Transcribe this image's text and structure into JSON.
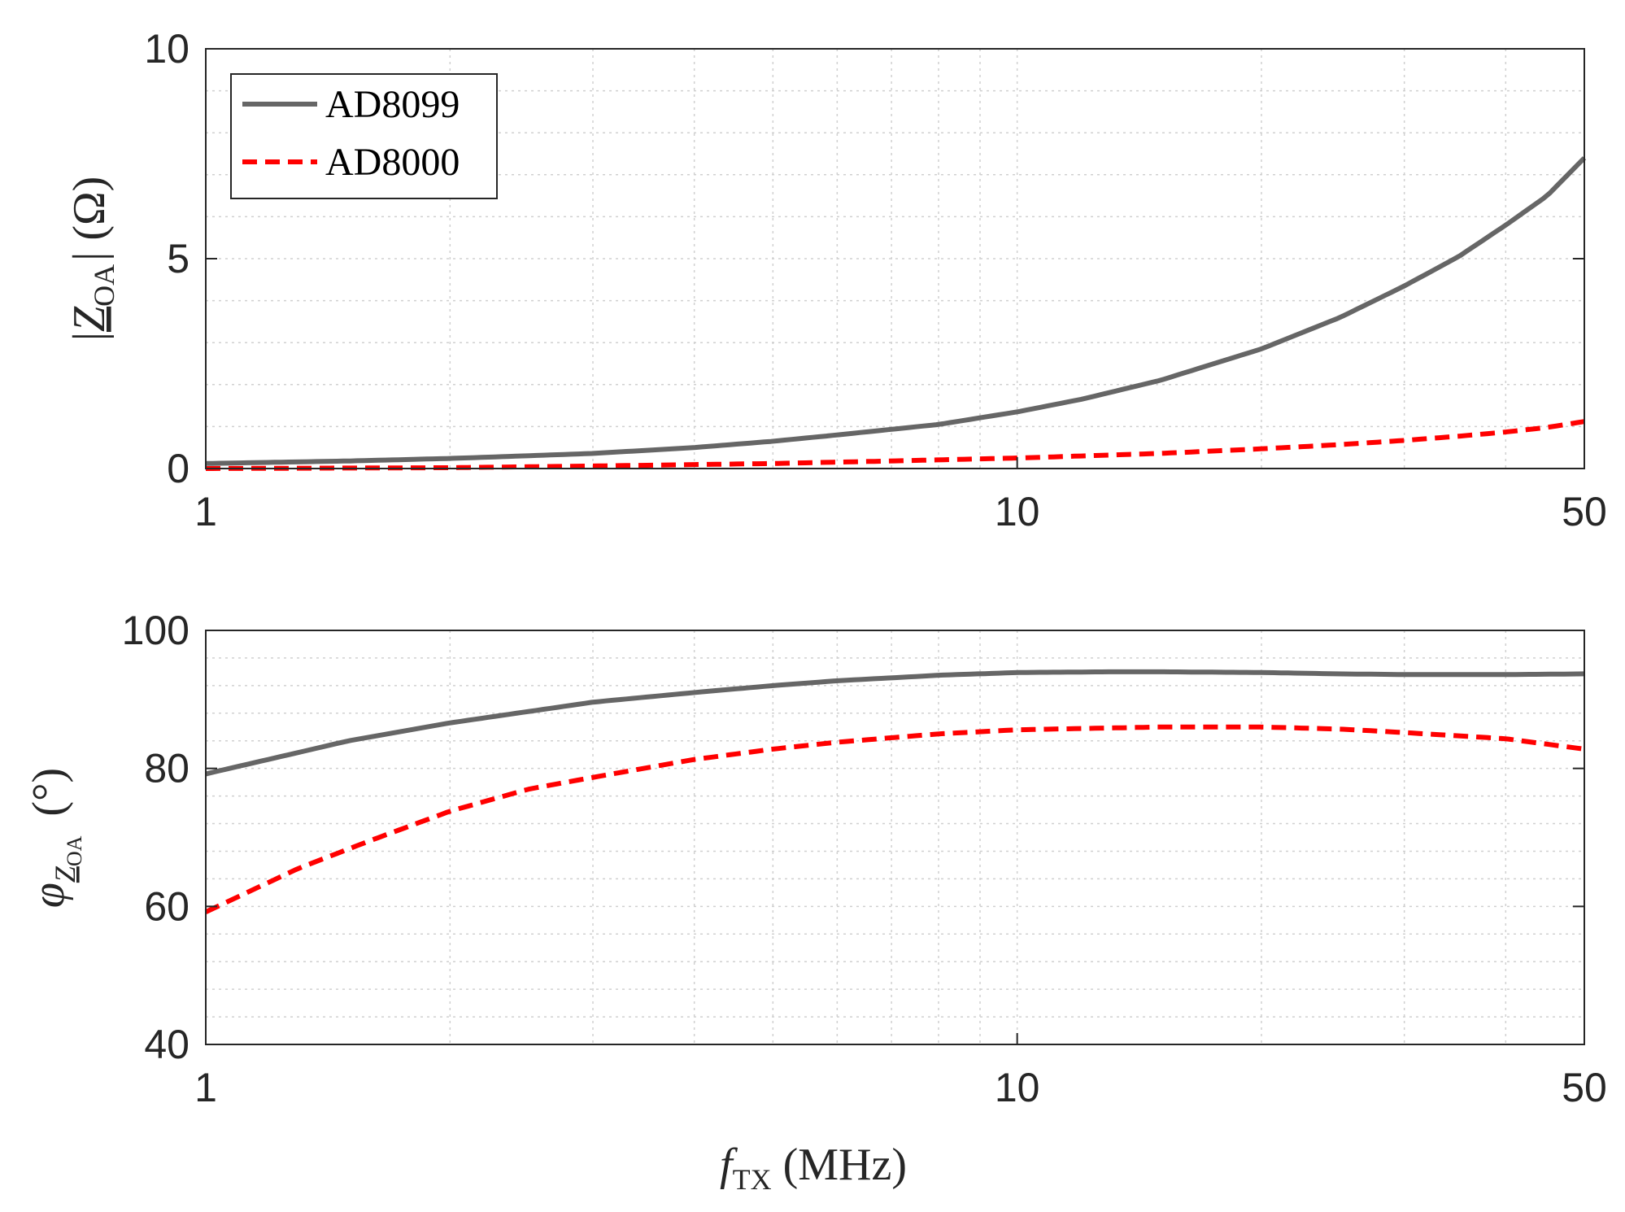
{
  "colors": {
    "ad8099": "#666666",
    "ad8000": "#ff0000",
    "grid": "#d0d0d0",
    "axis": "#262626"
  },
  "chart_data": [
    {
      "type": "line",
      "xscale": "log",
      "xlim": [
        1,
        50
      ],
      "ylim": [
        0,
        10
      ],
      "xticks": [
        1,
        10,
        50
      ],
      "xtick_labels": [
        "1",
        "10",
        "50"
      ],
      "yticks": [
        0,
        5,
        10
      ],
      "ytick_labels": [
        "0",
        "5",
        "10"
      ],
      "ylabel": {
        "left": "|",
        "main": "Z",
        "sub": "OA",
        "right": "| (Ω)"
      },
      "grid": true,
      "legend": {
        "position": "top-left",
        "entries": [
          "AD8099",
          "AD8000"
        ]
      },
      "series": [
        {
          "name": "AD8099",
          "style": "solid",
          "x": [
            1,
            1.5,
            2,
            3,
            4,
            5,
            6,
            8,
            10,
            12,
            15,
            20,
            25,
            30,
            35,
            40,
            45,
            50
          ],
          "y": [
            0.12,
            0.18,
            0.24,
            0.36,
            0.5,
            0.65,
            0.8,
            1.05,
            1.35,
            1.65,
            2.1,
            2.85,
            3.6,
            4.35,
            5.05,
            5.8,
            6.5,
            7.4
          ]
        },
        {
          "name": "AD8000",
          "style": "dashed",
          "x": [
            1,
            2,
            3,
            5,
            7,
            10,
            15,
            20,
            25,
            30,
            35,
            40,
            45,
            50
          ],
          "y": [
            0.0,
            0.02,
            0.06,
            0.12,
            0.18,
            0.25,
            0.36,
            0.47,
            0.57,
            0.67,
            0.77,
            0.87,
            0.98,
            1.12
          ]
        }
      ]
    },
    {
      "type": "line",
      "xscale": "log",
      "xlim": [
        1,
        50
      ],
      "ylim": [
        40,
        100
      ],
      "xticks": [
        1,
        10,
        50
      ],
      "xtick_labels": [
        "1",
        "10",
        "50"
      ],
      "yticks": [
        40,
        60,
        80,
        100
      ],
      "ytick_labels": [
        "40",
        "60",
        "80",
        "100"
      ],
      "xlabel": {
        "main": "f",
        "sub": "TX",
        "rest": "(MHz)"
      },
      "ylabel": {
        "main": "φ",
        "sub_main": "Z",
        "sub_sub": "OA",
        "right": "(°)"
      },
      "grid": true,
      "series": [
        {
          "name": "AD8099",
          "style": "solid",
          "x": [
            1,
            1.5,
            2,
            3,
            4,
            5,
            6,
            8,
            10,
            13,
            15,
            20,
            25,
            30,
            40,
            50
          ],
          "y": [
            79.2,
            84.0,
            86.6,
            89.6,
            91.0,
            92.0,
            92.7,
            93.5,
            93.9,
            94.0,
            94.0,
            93.9,
            93.7,
            93.6,
            93.6,
            93.7
          ]
        },
        {
          "name": "AD8000",
          "style": "dashed",
          "x": [
            1,
            1.3,
            1.6,
            2,
            2.5,
            3,
            4,
            5,
            6,
            8,
            10,
            15,
            20,
            25,
            30,
            40,
            50
          ],
          "y": [
            59.2,
            65.5,
            69.6,
            73.8,
            77.0,
            78.7,
            81.3,
            82.8,
            83.8,
            85.0,
            85.6,
            86.0,
            86.0,
            85.7,
            85.2,
            84.3,
            82.8
          ]
        }
      ]
    }
  ]
}
